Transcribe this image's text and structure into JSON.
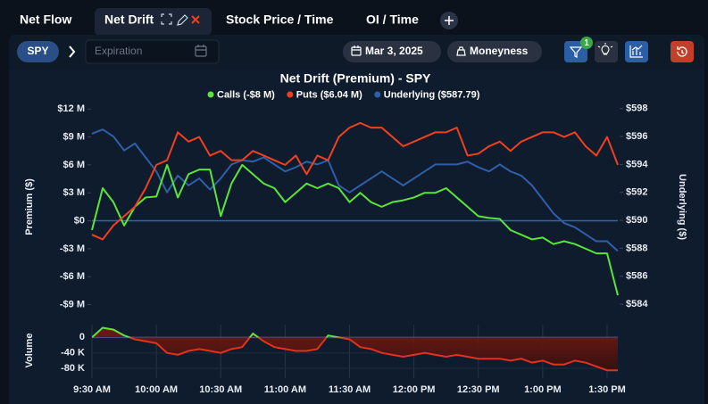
{
  "tabs": [
    "Net Flow",
    "Net Drift",
    "Stock Price / Time",
    "OI / Time"
  ],
  "active_tab": 1,
  "toolbar": {
    "symbol": "SPY",
    "expiration_placeholder": "Expiration",
    "date": "Mar 3, 2025",
    "moneyness": "Moneyness",
    "filter_count": 1
  },
  "chart_data": {
    "type": "line",
    "title": "Net Drift (Premium) - SPY",
    "y_label": "Premium ($)",
    "y2_label": "Underlying ($)",
    "categories": [
      "9:30 AM",
      null,
      null,
      null,
      null,
      null,
      "10:00 AM",
      null,
      null,
      null,
      null,
      null,
      "10:30 AM",
      null,
      null,
      null,
      null,
      null,
      "11:00 AM",
      null,
      null,
      null,
      null,
      null,
      "11:30 AM",
      null,
      null,
      null,
      null,
      null,
      "12:00 PM",
      null,
      null,
      null,
      null,
      null,
      "12:30 PM",
      null,
      null,
      null,
      null,
      null,
      "1:00 PM",
      null,
      null,
      null,
      null,
      null,
      "1:30 PM",
      null
    ],
    "ylim": [
      -10,
      12.5
    ],
    "yticks": [
      {
        "value": 12,
        "label": "$12 M"
      },
      {
        "value": 9,
        "label": "$9 M"
      },
      {
        "value": 6,
        "label": "$6 M"
      },
      {
        "value": 3,
        "label": "$3 M"
      },
      {
        "value": 0,
        "label": "$0"
      },
      {
        "value": -3,
        "label": "-$3 M"
      },
      {
        "value": -6,
        "label": "-$6 M"
      },
      {
        "value": -9,
        "label": "-$9 M"
      }
    ],
    "y2lim": [
      583.3,
      598.3
    ],
    "y2ticks": [
      {
        "value": 598,
        "label": "$598"
      },
      {
        "value": 596,
        "label": "$596"
      },
      {
        "value": 594,
        "label": "$594"
      },
      {
        "value": 592,
        "label": "$592"
      },
      {
        "value": 590,
        "label": "$590"
      },
      {
        "value": 588,
        "label": "$588"
      },
      {
        "value": 586,
        "label": "$586"
      },
      {
        "value": 584,
        "label": "$584"
      }
    ],
    "zero_line_color": "#2f66b3",
    "series": [
      {
        "name": "Calls (-$8 M)",
        "color": "#5be43b",
        "values": [
          -1,
          3.5,
          2,
          -0.5,
          1.5,
          2.5,
          2.6,
          6,
          2.5,
          5,
          5.5,
          5.5,
          0.5,
          4,
          6,
          5,
          4,
          3.5,
          2,
          3,
          4,
          3.5,
          4,
          3.5,
          2,
          3,
          2,
          1.5,
          2,
          2.2,
          2.5,
          3,
          3,
          3.5,
          2.5,
          1.5,
          0.5,
          0.3,
          0.2,
          -1,
          -1.5,
          -2,
          -1.8,
          -2.5,
          -2.2,
          -2.5,
          -3,
          -3.5,
          -3.5,
          -8
        ]
      },
      {
        "name": "Puts ($6.04 M)",
        "color": "#f0401f",
        "values": [
          -1.5,
          -2,
          -0.5,
          0.5,
          1.5,
          3.5,
          6,
          6.5,
          9.5,
          8.5,
          9,
          7,
          7.5,
          6.5,
          6.5,
          7.5,
          7,
          6.5,
          6,
          7,
          5,
          7,
          6.5,
          9,
          10,
          10.5,
          10,
          10,
          9,
          8,
          8.5,
          9,
          9.5,
          9.5,
          10,
          7,
          7.2,
          8,
          8.5,
          7.5,
          8.5,
          9,
          9.5,
          9.5,
          9,
          9.5,
          8,
          7,
          9,
          6
        ]
      },
      {
        "name": "Underlying ($587.79)",
        "color": "#2f5fa8",
        "axis": "y2",
        "values": [
          596.2,
          596.5,
          596,
          595,
          595.5,
          594.5,
          593.5,
          592,
          593.2,
          592.5,
          593,
          592.2,
          593,
          594,
          594.3,
          594.2,
          594.5,
          594,
          593.5,
          593.8,
          594.2,
          594,
          594.3,
          592.5,
          592,
          592.5,
          593,
          593.5,
          593,
          592.5,
          593,
          593.5,
          594,
          594,
          594,
          594.2,
          593.8,
          593.5,
          594,
          593.5,
          593.2,
          592.5,
          591.5,
          590.5,
          589.8,
          589.5,
          589,
          588.5,
          588.5,
          587.8
        ]
      }
    ],
    "volume": {
      "label": "Volume",
      "ylim": [
        -96,
        33
      ],
      "yticks": [
        0,
        {
          "value": -40,
          "label": "-40 K"
        },
        {
          "value": -80,
          "label": "-80 K"
        }
      ],
      "positive_color": "#5be43b",
      "negative_color": "#e2321c",
      "values": [
        0,
        25,
        20,
        5,
        -5,
        -10,
        -15,
        -40,
        -45,
        -35,
        -30,
        -35,
        -40,
        -30,
        -25,
        10,
        -10,
        -25,
        -30,
        -35,
        -35,
        -30,
        5,
        0,
        -5,
        -25,
        -30,
        -40,
        -45,
        -50,
        -45,
        -40,
        -45,
        -50,
        -45,
        -50,
        -55,
        -55,
        -55,
        -60,
        -55,
        -65,
        -60,
        -70,
        -70,
        -60,
        -65,
        -75,
        -85,
        -85
      ]
    }
  }
}
